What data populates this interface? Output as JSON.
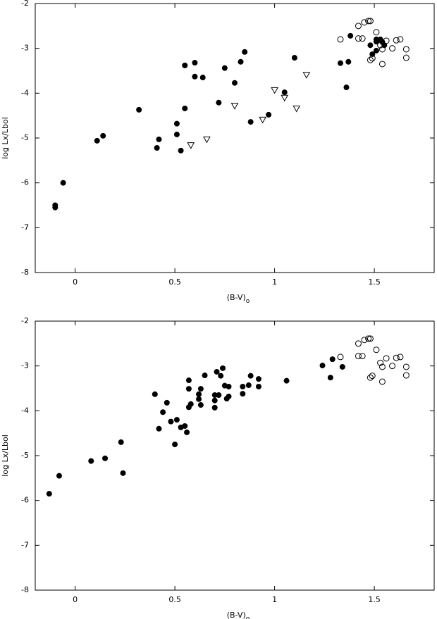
{
  "chart_data": [
    {
      "type": "scatter",
      "x_label": "(B-V)",
      "x_label_sub": "o",
      "y_label": "log Lx/Lbol",
      "xlim": [
        -0.2,
        1.8
      ],
      "ylim": [
        -8,
        -2
      ],
      "xticks": [
        0,
        0.5,
        1,
        1.5
      ],
      "yticks": [
        -2,
        -3,
        -4,
        -5,
        -6,
        -7,
        -8
      ],
      "series": [
        {
          "marker": "filled-circle",
          "color": "#000000",
          "x": [
            -0.1,
            -0.1,
            -0.06,
            0.11,
            0.14,
            0.32,
            0.41,
            0.42,
            0.51,
            0.51,
            0.53,
            0.55,
            0.55,
            0.6,
            0.6,
            0.64,
            0.72,
            0.75,
            0.8,
            0.83,
            0.85,
            0.88,
            0.97,
            1.05,
            1.1,
            1.33,
            1.37,
            1.36,
            1.38,
            1.48,
            1.49,
            1.51,
            1.51,
            1.51,
            1.53,
            1.54,
            1.55
          ],
          "values": [
            -6.5,
            -6.55,
            -6.0,
            -5.06,
            -4.95,
            -4.37,
            -5.22,
            -5.03,
            -4.68,
            -4.92,
            -5.28,
            -3.38,
            -4.34,
            -3.32,
            -3.63,
            -3.65,
            -4.21,
            -3.44,
            -3.77,
            -3.3,
            -3.08,
            -4.64,
            -4.48,
            -3.98,
            -3.21,
            -3.33,
            -3.3,
            -3.87,
            -2.72,
            -2.93,
            -3.13,
            -2.85,
            -2.8,
            -3.05,
            -2.8,
            -2.86,
            -2.93
          ]
        },
        {
          "marker": "open-circle",
          "color": "#000000",
          "x": [
            1.33,
            1.42,
            1.42,
            1.44,
            1.45,
            1.47,
            1.48,
            1.48,
            1.49,
            1.51,
            1.53,
            1.54,
            1.54,
            1.56,
            1.59,
            1.61,
            1.63,
            1.66,
            1.66
          ],
          "values": [
            -2.8,
            -2.5,
            -2.78,
            -2.78,
            -2.42,
            -2.39,
            -2.39,
            -3.26,
            -3.22,
            -2.64,
            -2.93,
            -3.02,
            -3.35,
            -2.83,
            -3.0,
            -2.82,
            -2.8,
            -3.02,
            -3.21
          ]
        },
        {
          "marker": "open-triangle-down",
          "color": "#000000",
          "x": [
            0.58,
            0.66,
            0.8,
            0.94,
            1.0,
            1.05,
            1.16,
            1.11
          ],
          "values": [
            -5.16,
            -5.03,
            -4.28,
            -4.59,
            -3.93,
            -4.1,
            -3.59,
            -4.34
          ]
        }
      ]
    },
    {
      "type": "scatter",
      "x_label": "(B-V)",
      "x_label_sub": "o",
      "y_label": "log Lx/Lbol",
      "xlim": [
        -0.2,
        1.8
      ],
      "ylim": [
        -8,
        -2
      ],
      "xticks": [
        0,
        0.5,
        1,
        1.5
      ],
      "yticks": [
        -2,
        -3,
        -4,
        -5,
        -6,
        -7,
        -8
      ],
      "series": [
        {
          "marker": "filled-circle",
          "color": "#000000",
          "x": [
            -0.13,
            -0.08,
            0.08,
            0.15,
            0.23,
            0.24,
            0.4,
            0.42,
            0.44,
            0.46,
            0.48,
            0.5,
            0.51,
            0.53,
            0.55,
            0.56,
            0.57,
            0.57,
            0.57,
            0.58,
            0.62,
            0.62,
            0.63,
            0.63,
            0.65,
            0.7,
            0.7,
            0.7,
            0.71,
            0.72,
            0.73,
            0.74,
            0.75,
            0.76,
            0.77,
            0.77,
            0.84,
            0.84,
            0.87,
            0.88,
            0.92,
            0.92,
            1.06,
            1.24,
            1.28,
            1.29,
            1.34
          ],
          "values": [
            -5.85,
            -5.45,
            -5.12,
            -5.06,
            -4.7,
            -5.39,
            -3.63,
            -4.4,
            -4.03,
            -3.82,
            -4.24,
            -4.75,
            -4.2,
            -4.37,
            -4.34,
            -4.48,
            -3.32,
            -3.51,
            -3.92,
            -3.85,
            -3.74,
            -3.63,
            -3.51,
            -3.87,
            -3.21,
            -3.93,
            -3.65,
            -3.77,
            -3.13,
            -3.65,
            -3.22,
            -3.05,
            -3.44,
            -3.73,
            -3.46,
            -3.68,
            -3.46,
            -3.62,
            -3.43,
            -3.22,
            -3.29,
            -3.46,
            -3.33,
            -2.99,
            -3.26,
            -2.85,
            -3.02
          ]
        },
        {
          "marker": "open-circle",
          "color": "#000000",
          "x": [
            1.33,
            1.42,
            1.42,
            1.44,
            1.45,
            1.47,
            1.48,
            1.48,
            1.49,
            1.51,
            1.53,
            1.54,
            1.54,
            1.56,
            1.59,
            1.61,
            1.63,
            1.66,
            1.66
          ],
          "values": [
            -2.8,
            -2.5,
            -2.78,
            -2.78,
            -2.42,
            -2.39,
            -2.39,
            -3.26,
            -3.22,
            -2.64,
            -2.93,
            -3.02,
            -3.35,
            -2.83,
            -3.0,
            -2.82,
            -2.8,
            -3.02,
            -3.21
          ]
        }
      ]
    }
  ]
}
